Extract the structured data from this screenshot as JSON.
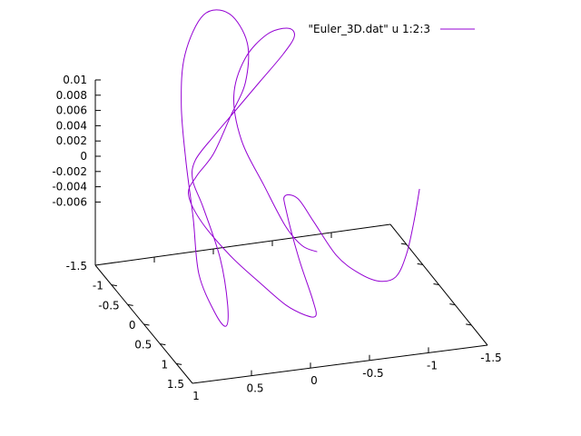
{
  "chart_data": {
    "type": "line",
    "subtype": "3d-curve",
    "series": [
      {
        "name": "\"Euler_3D.dat\" u 1:2:3",
        "color": "#9400d3",
        "points": [
          [
            -1.5,
            -0.6,
            -0.005
          ],
          [
            -1.37,
            -0.3,
            -0.0075
          ],
          [
            -1.23,
            -0.02,
            -0.01
          ],
          [
            -1.08,
            0.2,
            -0.0115
          ],
          [
            -0.9,
            0.33,
            -0.011
          ],
          [
            -0.7,
            0.42,
            -0.009
          ],
          [
            -0.5,
            0.48,
            -0.006
          ],
          [
            -0.3,
            0.5,
            -0.001
          ],
          [
            -0.18,
            0.45,
            0.002
          ],
          [
            -0.1,
            0.35,
            0.002
          ],
          [
            -0.12,
            0.3,
            -0.0
          ],
          [
            -0.2,
            0.4,
            -0.006
          ],
          [
            -0.28,
            0.55,
            -0.011
          ],
          [
            -0.25,
            0.75,
            -0.012
          ],
          [
            -0.1,
            0.95,
            -0.0105
          ],
          [
            0.1,
            1.1,
            -0.008
          ],
          [
            0.3,
            1.05,
            -0.005
          ],
          [
            0.5,
            0.85,
            -0.002
          ],
          [
            0.65,
            0.5,
            0.001
          ],
          [
            0.65,
            0.1,
            0.0025
          ],
          [
            0.5,
            -0.2,
            0.003
          ],
          [
            0.3,
            -0.4,
            0.0045
          ],
          [
            0.1,
            -0.6,
            0.008
          ],
          [
            -0.08,
            -0.8,
            0.011
          ],
          [
            -0.15,
            -1.0,
            0.015
          ],
          [
            -0.05,
            -1.2,
            0.018
          ],
          [
            0.15,
            -1.25,
            0.018
          ],
          [
            0.35,
            -1.1,
            0.014
          ],
          [
            0.45,
            -0.85,
            0.009
          ],
          [
            0.48,
            -0.6,
            0.003
          ],
          [
            0.5,
            -0.3,
            -0.003
          ],
          [
            0.52,
            -0.05,
            -0.009
          ],
          [
            0.45,
            0.2,
            -0.013
          ],
          [
            0.4,
            0.35,
            -0.014
          ],
          [
            0.4,
            0.4,
            -0.011
          ],
          [
            0.45,
            0.35,
            -0.005
          ],
          [
            0.55,
            0.2,
            0.001
          ],
          [
            0.6,
            0.05,
            0.004
          ],
          [
            0.55,
            -0.05,
            0.006
          ],
          [
            0.35,
            -0.2,
            0.008
          ],
          [
            0.1,
            -0.4,
            0.01
          ],
          [
            -0.15,
            -0.6,
            0.012
          ],
          [
            -0.4,
            -0.8,
            0.014
          ],
          [
            -0.55,
            -1.0,
            0.015
          ],
          [
            -0.55,
            -1.2,
            0.015
          ],
          [
            -0.4,
            -1.3,
            0.014
          ],
          [
            -0.2,
            -1.25,
            0.0115
          ],
          [
            -0.05,
            -1.05,
            0.008
          ],
          [
            -0.02,
            -0.7,
            0.004
          ],
          [
            -0.1,
            -0.3,
            0.0
          ],
          [
            -0.2,
            0.0,
            -0.004
          ],
          [
            -0.3,
            0.15,
            -0.006
          ],
          [
            -0.4,
            0.25,
            -0.0065
          ]
        ]
      }
    ],
    "axes": {
      "x": {
        "range": [
          1,
          -1.5
        ],
        "ticks": [
          1,
          0.5,
          0,
          -0.5,
          -1,
          -1.5
        ],
        "labels": [
          "1",
          "0.5",
          "0",
          "-0.5",
          "-1",
          "-1.5"
        ]
      },
      "y": {
        "range": [
          -1.5,
          1.5
        ],
        "ticks": [
          -1.5,
          -1,
          -0.5,
          0,
          0.5,
          1,
          1.5
        ],
        "labels": [
          "-1.5",
          "-1",
          "-0.5",
          "0",
          "0.5",
          "1",
          "1.5"
        ]
      },
      "z": {
        "range": [
          -0.007,
          0.01
        ],
        "ticks": [
          0.01,
          0.008,
          0.006,
          0.004,
          0.002,
          0,
          -0.002,
          -0.004,
          -0.006
        ],
        "labels": [
          "0.01",
          "0.008",
          "0.006",
          "0.004",
          "0.002",
          "0",
          "-0.002",
          "-0.004",
          "-0.006"
        ]
      }
    },
    "grid": false,
    "legend": {
      "position": "top-right"
    },
    "title": "",
    "xlabel": "",
    "ylabel": "",
    "zlabel": ""
  }
}
